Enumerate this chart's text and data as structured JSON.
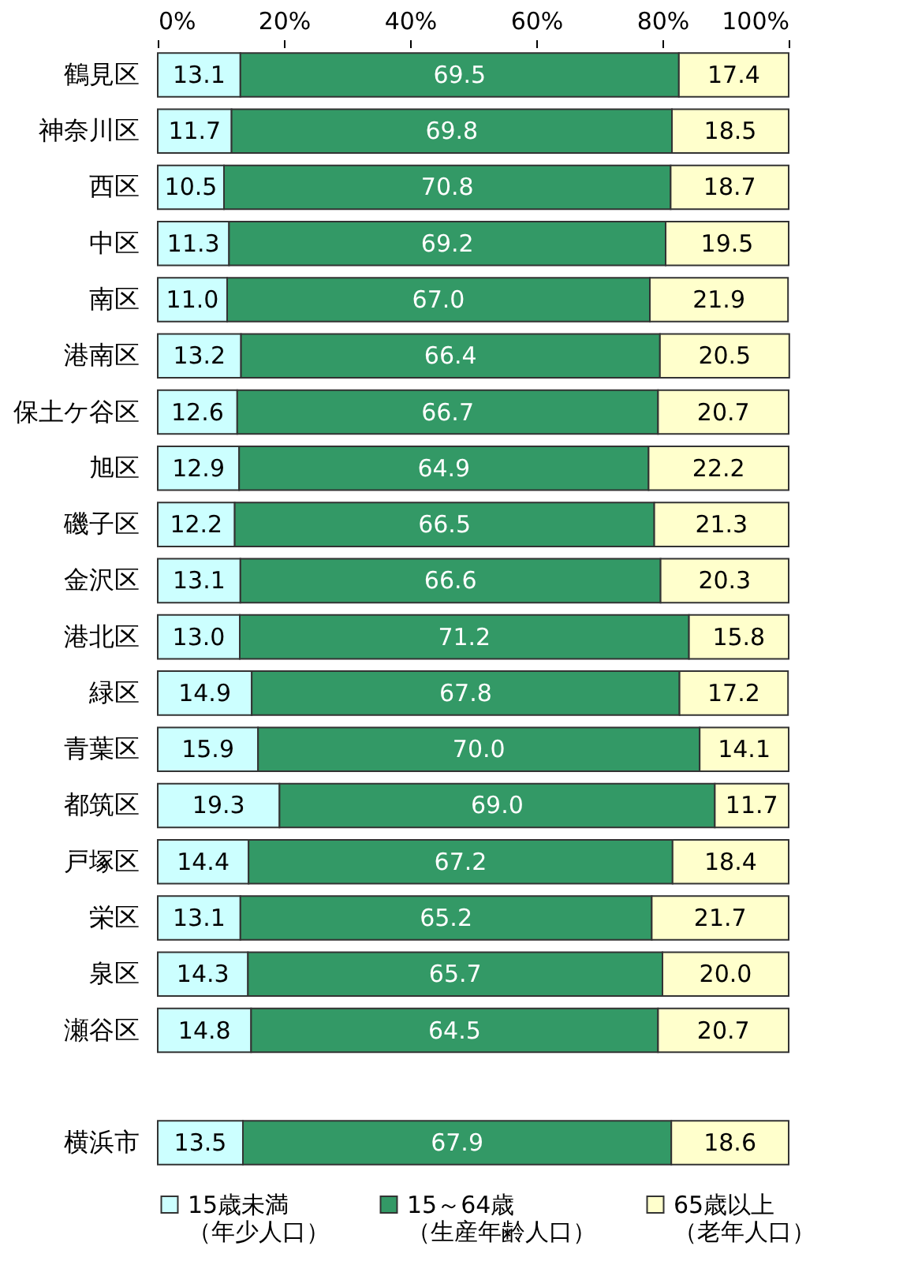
{
  "chart_data": {
    "type": "bar",
    "orientation": "horizontal",
    "stacked": true,
    "legend": "bottom",
    "grid": false,
    "categories": [
      "鶴見区",
      "神奈川区",
      "西区",
      "中区",
      "南区",
      "港南区",
      "保土ケ谷区",
      "旭区",
      "磯子区",
      "金沢区",
      "港北区",
      "緑区",
      "青葉区",
      "都筑区",
      "戸塚区",
      "栄区",
      "泉区",
      "瀬谷区",
      null,
      "横浜市"
    ],
    "xlim": [
      0,
      100
    ],
    "xticks": [
      {
        "value": 0,
        "label": "0%"
      },
      {
        "value": 20,
        "label": "20%"
      },
      {
        "value": 40,
        "label": "40%"
      },
      {
        "value": 60,
        "label": "60%"
      },
      {
        "value": 80,
        "label": "80%"
      },
      {
        "value": 100,
        "label": "100%"
      }
    ],
    "series": [
      {
        "name": "15歳未満（年少人口）",
        "color": "#ccffff",
        "values": [
          13.1,
          11.7,
          10.5,
          11.3,
          11.0,
          13.2,
          12.6,
          12.9,
          12.2,
          13.1,
          13.0,
          14.9,
          15.9,
          19.3,
          14.4,
          13.1,
          14.3,
          14.8,
          null,
          13.5
        ],
        "value_labels": [
          "13.1",
          "11.7",
          "10.5",
          "11.3",
          "11.0",
          "13.2",
          "12.6",
          "12.9",
          "12.2",
          "13.1",
          "13.0",
          "14.9",
          "15.9",
          "19.3",
          "14.4",
          "13.1",
          "14.3",
          "14.8",
          null,
          "13.5"
        ]
      },
      {
        "name": "15～64歳（生産年齢人口）",
        "color": "#339966",
        "values": [
          69.5,
          69.8,
          70.8,
          69.2,
          67.0,
          66.4,
          66.7,
          64.9,
          66.5,
          66.6,
          71.2,
          67.8,
          70.0,
          69.0,
          67.2,
          65.2,
          65.7,
          64.5,
          null,
          67.9
        ],
        "value_labels": [
          "69.5",
          "69.8",
          "70.8",
          "69.2",
          "67.0",
          "66.4",
          "66.7",
          "64.9",
          "66.5",
          "66.6",
          "71.2",
          "67.8",
          "70.0",
          "69.0",
          "67.2",
          "65.2",
          "65.7",
          "64.5",
          null,
          "67.9"
        ]
      },
      {
        "name": "65歳以上（老年人口）",
        "color": "#ffffcc",
        "values": [
          17.4,
          18.5,
          18.7,
          19.5,
          21.9,
          20.5,
          20.7,
          22.2,
          21.3,
          20.3,
          15.8,
          17.2,
          14.1,
          11.7,
          18.4,
          21.7,
          20.0,
          20.7,
          null,
          18.6
        ],
        "value_labels": [
          "17.4",
          "18.5",
          "18.7",
          "19.5",
          "21.9",
          "20.5",
          "20.7",
          "22.2",
          "21.3",
          "20.3",
          "15.8",
          "17.2",
          "14.1",
          "11.7",
          "18.4",
          "21.7",
          "20.0",
          "20.7",
          null,
          "18.6"
        ]
      }
    ]
  }
}
